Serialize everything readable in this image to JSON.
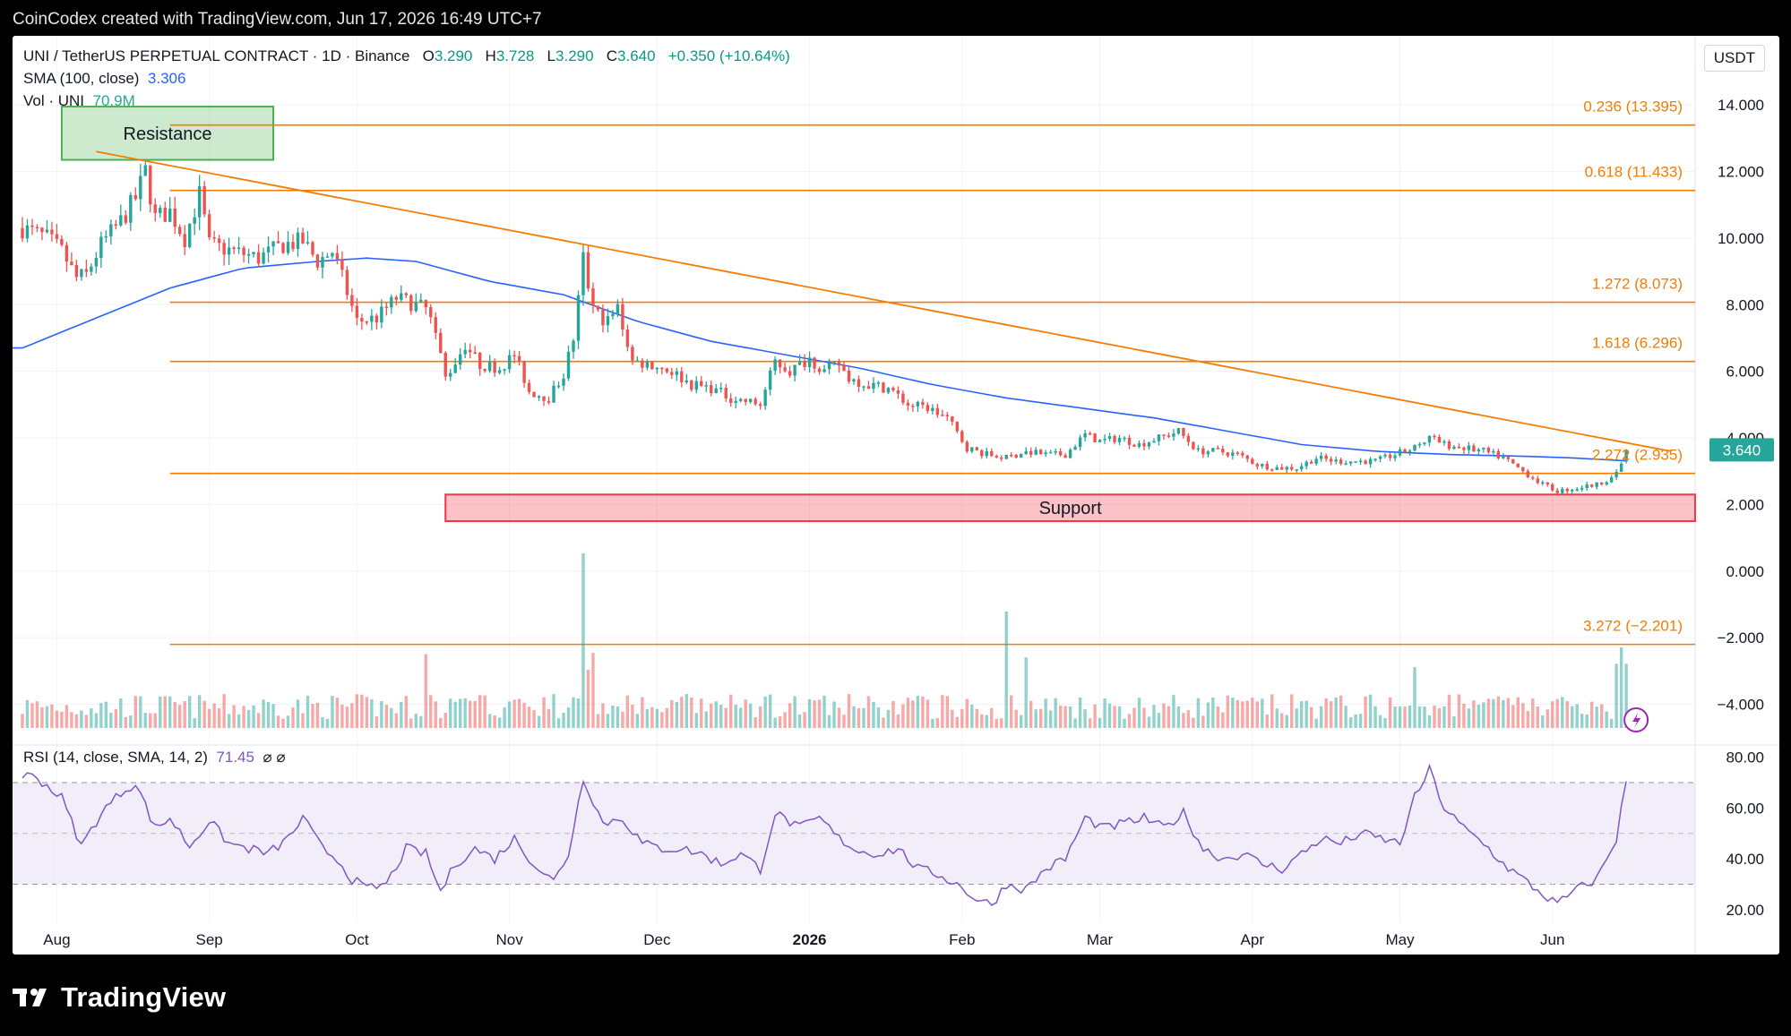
{
  "header": {
    "caption": "CoinCodex created with TradingView.com, Jun 17, 2026 16:49 UTC+7"
  },
  "legend": {
    "symbol": "UNI / TetherUS PERPETUAL CONTRACT · 1D · Binance",
    "o_label": "O",
    "o": "3.290",
    "h_label": "H",
    "h": "3.728",
    "l_label": "L",
    "l": "3.290",
    "c_label": "C",
    "c": "3.640",
    "change": "+0.350 (+10.64%)",
    "sma_label": "SMA (100, close)",
    "sma_value": "3.306",
    "vol_label": "Vol · UNI",
    "vol_value": "70.9M"
  },
  "currency": "USDT",
  "rsi": {
    "label": "RSI (14, close, SMA, 14, 2)",
    "value": "71.45",
    "extra": "⌀ ⌀"
  },
  "footer": {
    "brand": "TradingView"
  },
  "colors": {
    "up": "#26a69a",
    "down": "#ef5350",
    "sma": "#2962ff",
    "rsi": "#7e57c2",
    "fib": "#f57c00",
    "support": "#f23645",
    "resistance": "#4caf50"
  },
  "chart_data": {
    "type": "candlestick",
    "price_axis": {
      "ylim": [
        -4.9,
        15.0
      ],
      "ticks": [
        "14.000",
        "12.000",
        "10.000",
        "8.000",
        "6.000",
        "4.000",
        "2.000",
        "0.000",
        "−2.000",
        "−4.000"
      ],
      "tick_values": [
        14,
        12,
        10,
        8,
        6,
        4,
        2,
        0,
        -2,
        -4
      ]
    },
    "rsi_axis": {
      "ylim": [
        15,
        82
      ],
      "ticks": [
        "80.00",
        "60.00",
        "40.00",
        "20.00"
      ],
      "tick_values": [
        80,
        60,
        40,
        20
      ],
      "band": [
        30,
        70
      ],
      "mid": 50
    },
    "x_axis": {
      "labels": [
        "Aug",
        "Sep",
        "Oct",
        "Nov",
        "Dec",
        "2026",
        "Feb",
        "Mar",
        "Apr",
        "May",
        "Jun"
      ],
      "label_days": [
        7,
        38,
        68,
        99,
        129,
        160,
        191,
        219,
        250,
        280,
        311
      ],
      "bold": "2026",
      "first_day": 0,
      "last_day": 335
    },
    "last_price": {
      "value": 3.64,
      "label": "3.640"
    },
    "fib_levels": [
      {
        "label": "0.236 (13.395)",
        "value": 13.395,
        "x_from_day": 30
      },
      {
        "label": "0.618 (11.433)",
        "value": 11.433,
        "x_from_day": 30
      },
      {
        "label": "1.272 (8.073)",
        "value": 8.073,
        "x_from_day": 30
      },
      {
        "label": "1.618 (6.296)",
        "value": 6.296,
        "x_from_day": 30
      },
      {
        "label": "2.272 (2.935)",
        "value": 2.935,
        "x_from_day": 30
      },
      {
        "label": "3.272 (−2.201)",
        "value": -2.201,
        "x_from_day": 30
      }
    ],
    "trendline": {
      "from": {
        "day": 15,
        "value": 12.6
      },
      "to": {
        "day": 335,
        "value": 3.6
      }
    },
    "resistance_zone": {
      "label": "Resistance",
      "from_day": 8,
      "to_day": 51,
      "low": 12.35,
      "high": 13.95
    },
    "support_zone": {
      "label": "Support",
      "from_day": 86,
      "to_day": 335,
      "low": 1.5,
      "high": 2.3
    },
    "price_anchors": [
      [
        0,
        10.3
      ],
      [
        5,
        10.0
      ],
      [
        8,
        9.6
      ],
      [
        11,
        8.8
      ],
      [
        13,
        8.9
      ],
      [
        16,
        9.8
      ],
      [
        20,
        10.5
      ],
      [
        23,
        11.2
      ],
      [
        25,
        12.0
      ],
      [
        27,
        10.6
      ],
      [
        30,
        10.8
      ],
      [
        33,
        10.0
      ],
      [
        36,
        11.3
      ],
      [
        38,
        9.8
      ],
      [
        43,
        9.6
      ],
      [
        48,
        9.4
      ],
      [
        53,
        9.8
      ],
      [
        57,
        9.9
      ],
      [
        60,
        9.3
      ],
      [
        63,
        9.6
      ],
      [
        65,
        8.8
      ],
      [
        68,
        7.5
      ],
      [
        72,
        7.6
      ],
      [
        76,
        8.2
      ],
      [
        80,
        8.0
      ],
      [
        83,
        7.8
      ],
      [
        86,
        5.8
      ],
      [
        90,
        6.8
      ],
      [
        93,
        6.2
      ],
      [
        97,
        6.1
      ],
      [
        100,
        6.5
      ],
      [
        103,
        5.4
      ],
      [
        107,
        5.2
      ],
      [
        110,
        5.9
      ],
      [
        112,
        7.0
      ],
      [
        114,
        9.4
      ],
      [
        116,
        7.8
      ],
      [
        119,
        7.5
      ],
      [
        121,
        7.9
      ],
      [
        124,
        6.3
      ],
      [
        128,
        6.2
      ],
      [
        132,
        6.0
      ],
      [
        136,
        5.6
      ],
      [
        140,
        5.5
      ],
      [
        144,
        5.2
      ],
      [
        150,
        5.0
      ],
      [
        153,
        6.3
      ],
      [
        156,
        6.0
      ],
      [
        160,
        6.4
      ],
      [
        163,
        6.0
      ],
      [
        166,
        6.2
      ],
      [
        168,
        5.8
      ],
      [
        172,
        5.6
      ],
      [
        176,
        5.5
      ],
      [
        180,
        5.0
      ],
      [
        184,
        4.9
      ],
      [
        188,
        4.6
      ],
      [
        192,
        3.7
      ],
      [
        196,
        3.5
      ],
      [
        200,
        3.4
      ],
      [
        204,
        3.6
      ],
      [
        208,
        3.5
      ],
      [
        212,
        3.5
      ],
      [
        216,
        4.1
      ],
      [
        219,
        3.9
      ],
      [
        223,
        4.0
      ],
      [
        227,
        3.8
      ],
      [
        231,
        4.0
      ],
      [
        235,
        4.2
      ],
      [
        239,
        3.6
      ],
      [
        243,
        3.6
      ],
      [
        247,
        3.5
      ],
      [
        251,
        3.2
      ],
      [
        255,
        3.1
      ],
      [
        259,
        3.1
      ],
      [
        263,
        3.4
      ],
      [
        267,
        3.3
      ],
      [
        271,
        3.3
      ],
      [
        275,
        3.3
      ],
      [
        279,
        3.5
      ],
      [
        283,
        3.7
      ],
      [
        286,
        4.0
      ],
      [
        289,
        3.8
      ],
      [
        293,
        3.7
      ],
      [
        297,
        3.6
      ],
      [
        301,
        3.4
      ],
      [
        305,
        3.0
      ],
      [
        309,
        2.6
      ],
      [
        312,
        2.4
      ],
      [
        316,
        2.5
      ],
      [
        320,
        2.6
      ],
      [
        324,
        2.9
      ],
      [
        325,
        3.29
      ],
      [
        326,
        3.64
      ]
    ],
    "sma_anchors": [
      [
        0,
        6.7
      ],
      [
        15,
        7.6
      ],
      [
        30,
        8.5
      ],
      [
        45,
        9.1
      ],
      [
        60,
        9.3
      ],
      [
        70,
        9.4
      ],
      [
        80,
        9.3
      ],
      [
        95,
        8.7
      ],
      [
        110,
        8.3
      ],
      [
        125,
        7.5
      ],
      [
        140,
        6.9
      ],
      [
        155,
        6.5
      ],
      [
        170,
        6.1
      ],
      [
        185,
        5.6
      ],
      [
        200,
        5.2
      ],
      [
        215,
        4.9
      ],
      [
        230,
        4.6
      ],
      [
        245,
        4.2
      ],
      [
        260,
        3.8
      ],
      [
        275,
        3.6
      ],
      [
        290,
        3.5
      ],
      [
        305,
        3.45
      ],
      [
        315,
        3.4
      ],
      [
        326,
        3.31
      ]
    ],
    "volume_max_label": "+",
    "rsi_anchors": [
      [
        0,
        73
      ],
      [
        3,
        72
      ],
      [
        8,
        64
      ],
      [
        12,
        45
      ],
      [
        16,
        58
      ],
      [
        20,
        66
      ],
      [
        23,
        70
      ],
      [
        27,
        52
      ],
      [
        30,
        56
      ],
      [
        34,
        45
      ],
      [
        38,
        55
      ],
      [
        42,
        46
      ],
      [
        46,
        44
      ],
      [
        50,
        42
      ],
      [
        54,
        48
      ],
      [
        57,
        56
      ],
      [
        61,
        44
      ],
      [
        64,
        40
      ],
      [
        67,
        32
      ],
      [
        70,
        28
      ],
      [
        74,
        30
      ],
      [
        78,
        44
      ],
      [
        82,
        42
      ],
      [
        85,
        27
      ],
      [
        88,
        38
      ],
      [
        92,
        44
      ],
      [
        96,
        40
      ],
      [
        100,
        48
      ],
      [
        104,
        38
      ],
      [
        108,
        31
      ],
      [
        111,
        42
      ],
      [
        114,
        72
      ],
      [
        118,
        54
      ],
      [
        122,
        56
      ],
      [
        126,
        46
      ],
      [
        130,
        44
      ],
      [
        134,
        44
      ],
      [
        138,
        42
      ],
      [
        142,
        38
      ],
      [
        146,
        42
      ],
      [
        150,
        36
      ],
      [
        153,
        58
      ],
      [
        158,
        52
      ],
      [
        162,
        56
      ],
      [
        166,
        48
      ],
      [
        170,
        43
      ],
      [
        174,
        42
      ],
      [
        178,
        44
      ],
      [
        182,
        36
      ],
      [
        186,
        34
      ],
      [
        190,
        30
      ],
      [
        194,
        24
      ],
      [
        197,
        22
      ],
      [
        200,
        30
      ],
      [
        204,
        28
      ],
      [
        208,
        36
      ],
      [
        212,
        40
      ],
      [
        216,
        56
      ],
      [
        220,
        52
      ],
      [
        224,
        54
      ],
      [
        228,
        56
      ],
      [
        232,
        52
      ],
      [
        236,
        58
      ],
      [
        240,
        44
      ],
      [
        244,
        40
      ],
      [
        248,
        42
      ],
      [
        252,
        38
      ],
      [
        256,
        36
      ],
      [
        260,
        42
      ],
      [
        264,
        48
      ],
      [
        268,
        46
      ],
      [
        272,
        50
      ],
      [
        276,
        48
      ],
      [
        280,
        46
      ],
      [
        283,
        64
      ],
      [
        286,
        75
      ],
      [
        289,
        60
      ],
      [
        293,
        52
      ],
      [
        297,
        46
      ],
      [
        301,
        38
      ],
      [
        305,
        32
      ],
      [
        309,
        26
      ],
      [
        312,
        22
      ],
      [
        316,
        28
      ],
      [
        320,
        32
      ],
      [
        324,
        48
      ],
      [
        326,
        71
      ]
    ]
  }
}
